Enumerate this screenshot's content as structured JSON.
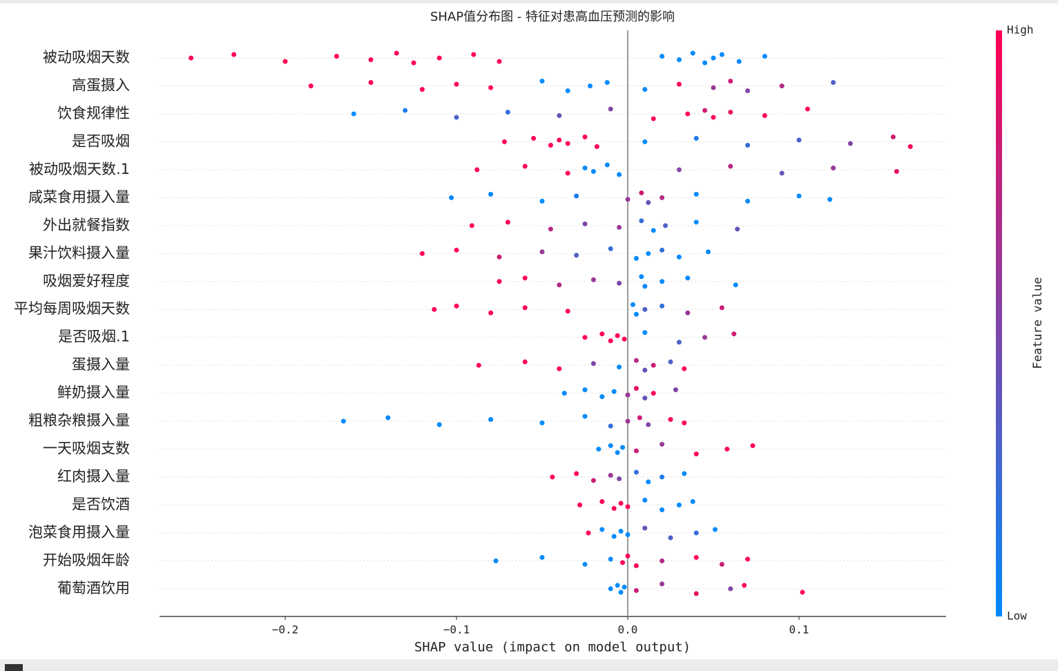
{
  "chart_data": {
    "type": "beeswarm",
    "title": "SHAP值分布图 - 特征对患高血压预测的影响",
    "xlabel": "SHAP value (impact on model output)",
    "xlim": [
      -0.2734,
      0.1859
    ],
    "xticks": [
      {
        "value": -0.2,
        "label": "−0.2"
      },
      {
        "value": -0.1,
        "label": "−0.1"
      },
      {
        "value": 0,
        "label": "0.0"
      },
      {
        "value": 0.1,
        "label": "0.1"
      }
    ],
    "colormap": {
      "low": "#008afb",
      "high": "#ff0052"
    },
    "colorbar": {
      "label": "Feature value",
      "high": "High",
      "low": "Low"
    },
    "grid": true,
    "series": [
      {
        "name": "被动吸烟天数",
        "values": [
          -0.255,
          -0.23,
          -0.2,
          -0.17,
          -0.15,
          -0.135,
          -0.125,
          -0.11,
          -0.09,
          -0.075,
          0.02,
          0.03,
          0.038,
          0.045,
          0.05,
          0.055,
          0.065,
          0.08
        ],
        "feature_values": [
          1,
          1,
          1,
          1,
          1,
          1,
          1,
          1,
          1,
          1,
          0,
          0,
          0,
          0,
          0,
          0,
          0,
          0
        ]
      },
      {
        "name": "高蛋摄入",
        "values": [
          -0.185,
          -0.15,
          -0.12,
          -0.1,
          -0.08,
          -0.05,
          -0.035,
          -0.022,
          -0.012,
          0.01,
          0.03,
          0.05,
          0.06,
          0.07,
          0.09,
          0.12
        ],
        "feature_values": [
          1,
          1,
          1,
          1,
          1,
          0,
          0,
          0,
          0,
          0,
          1,
          0.6,
          0.8,
          0.5,
          0.7,
          0.3
        ]
      },
      {
        "name": "饮食规律性",
        "values": [
          -0.16,
          -0.13,
          -0.1,
          -0.07,
          -0.04,
          -0.01,
          0.015,
          0.035,
          0.045,
          0.05,
          0.06,
          0.08,
          0.105
        ],
        "feature_values": [
          0,
          0.1,
          0.3,
          0.2,
          0.4,
          0.5,
          1,
          1,
          0.8,
          1,
          0.9,
          1,
          1
        ]
      },
      {
        "name": "是否吸烟",
        "values": [
          -0.072,
          -0.055,
          -0.045,
          -0.04,
          -0.035,
          -0.025,
          -0.018,
          0.01,
          0.04,
          0.07,
          0.1,
          0.13,
          0.155,
          0.165
        ],
        "feature_values": [
          1,
          1,
          1,
          1,
          1,
          1,
          1,
          0,
          0.1,
          0.2,
          0.3,
          0.5,
          0.8,
          1
        ]
      },
      {
        "name": "被动吸烟天数.1",
        "values": [
          -0.088,
          -0.06,
          -0.035,
          -0.025,
          -0.02,
          -0.012,
          -0.005,
          0.03,
          0.06,
          0.09,
          0.12,
          0.157
        ],
        "feature_values": [
          1,
          1,
          1,
          0,
          0,
          0,
          0,
          0.5,
          0.7,
          0.4,
          0.6,
          0.9
        ]
      },
      {
        "name": "咸菜食用摄入量",
        "values": [
          -0.103,
          -0.08,
          -0.05,
          -0.03,
          0,
          0.008,
          0.012,
          0.02,
          0.04,
          0.07,
          0.1,
          0.118
        ],
        "feature_values": [
          0,
          0,
          0,
          0.1,
          0.6,
          0.8,
          0.4,
          0.7,
          0,
          0,
          0,
          0
        ]
      },
      {
        "name": "外出就餐指数",
        "values": [
          -0.091,
          -0.07,
          -0.045,
          -0.025,
          -0.005,
          0.008,
          0.015,
          0.022,
          0.04,
          0.064
        ],
        "feature_values": [
          1,
          1,
          0.7,
          0.5,
          0.6,
          0.2,
          0,
          0.3,
          0,
          0.4
        ]
      },
      {
        "name": "果汁饮料摄入量",
        "values": [
          -0.12,
          -0.1,
          -0.075,
          -0.05,
          -0.03,
          -0.01,
          0.005,
          0.012,
          0.02,
          0.03,
          0.047
        ],
        "feature_values": [
          1,
          1,
          0.8,
          0.6,
          0.3,
          0.2,
          0,
          0,
          0.2,
          0,
          0
        ]
      },
      {
        "name": "吸烟爱好程度",
        "values": [
          -0.075,
          -0.06,
          -0.04,
          -0.02,
          -0.005,
          0.008,
          0.01,
          0.02,
          0.035,
          0.063
        ],
        "feature_values": [
          1,
          1,
          0.7,
          0.6,
          0.5,
          0,
          0,
          0,
          0,
          0
        ]
      },
      {
        "name": "平均每周吸烟天数",
        "values": [
          -0.113,
          -0.1,
          -0.08,
          -0.06,
          -0.035,
          0.003,
          0.005,
          0.01,
          0.02,
          0.035,
          0.055
        ],
        "feature_values": [
          1,
          1,
          1,
          1,
          1,
          0,
          0,
          0.3,
          0.2,
          0.6,
          0.8
        ]
      },
      {
        "name": "是否吸烟.1",
        "values": [
          -0.025,
          -0.015,
          -0.01,
          -0.006,
          -0.002,
          0.01,
          0.03,
          0.045,
          0.062
        ],
        "feature_values": [
          1,
          1,
          1,
          1,
          1,
          0,
          0.3,
          0.6,
          0.8
        ]
      },
      {
        "name": "蛋摄入量",
        "values": [
          -0.087,
          -0.06,
          -0.04,
          -0.02,
          -0.005,
          0.005,
          0.01,
          0.015,
          0.025,
          0.033
        ],
        "feature_values": [
          1,
          1,
          1,
          0.5,
          0,
          0.7,
          0.4,
          0.8,
          0.3,
          1
        ]
      },
      {
        "name": "鲜奶摄入量",
        "values": [
          -0.037,
          -0.025,
          -0.015,
          -0.008,
          0,
          0.005,
          0.01,
          0.015,
          0.028
        ],
        "feature_values": [
          0,
          0,
          0,
          0,
          0.6,
          0.9,
          0.4,
          1,
          0.5
        ]
      },
      {
        "name": "粗粮杂粮摄入量",
        "values": [
          -0.166,
          -0.14,
          -0.11,
          -0.08,
          -0.05,
          -0.025,
          -0.01,
          0,
          0.007,
          0.012,
          0.025,
          0.033
        ],
        "feature_values": [
          0,
          0,
          0,
          0,
          0,
          0,
          0.2,
          0.6,
          0.8,
          0.5,
          1,
          1
        ]
      },
      {
        "name": "一天吸烟支数",
        "values": [
          -0.017,
          -0.01,
          -0.006,
          -0.003,
          0.005,
          0.02,
          0.04,
          0.058,
          0.073
        ],
        "feature_values": [
          0,
          0,
          0,
          0,
          0.8,
          0.6,
          1,
          1,
          1
        ]
      },
      {
        "name": "红肉摄入量",
        "values": [
          -0.044,
          -0.03,
          -0.02,
          -0.01,
          -0.005,
          0.005,
          0.012,
          0.02,
          0.033
        ],
        "feature_values": [
          1,
          1,
          0.8,
          0.6,
          0.5,
          0.2,
          0,
          0.1,
          0
        ]
      },
      {
        "name": "是否饮酒",
        "values": [
          -0.028,
          -0.015,
          -0.008,
          -0.004,
          0,
          0.01,
          0.02,
          0.03,
          0.038
        ],
        "feature_values": [
          1,
          1,
          1,
          1,
          1,
          0,
          0,
          0,
          0
        ]
      },
      {
        "name": "泡菜食用摄入量",
        "values": [
          -0.023,
          -0.015,
          -0.008,
          -0.004,
          0,
          0.01,
          0.025,
          0.04,
          0.051
        ],
        "feature_values": [
          1,
          0,
          0,
          0,
          0,
          0.4,
          0.3,
          0.2,
          0
        ]
      },
      {
        "name": "开始吸烟年龄",
        "values": [
          -0.077,
          -0.05,
          -0.025,
          -0.01,
          -0.003,
          0,
          0.005,
          0.02,
          0.04,
          0.055,
          0.07
        ],
        "feature_values": [
          0,
          0,
          0,
          0,
          1,
          1,
          1,
          0.7,
          1,
          0.8,
          1
        ]
      },
      {
        "name": "葡萄酒饮用",
        "values": [
          -0.01,
          -0.006,
          -0.004,
          -0.002,
          0.005,
          0.02,
          0.04,
          0.06,
          0.068,
          0.102
        ],
        "feature_values": [
          0,
          0,
          0,
          0,
          0.8,
          0.6,
          0.9,
          0.5,
          1,
          1
        ]
      }
    ]
  }
}
